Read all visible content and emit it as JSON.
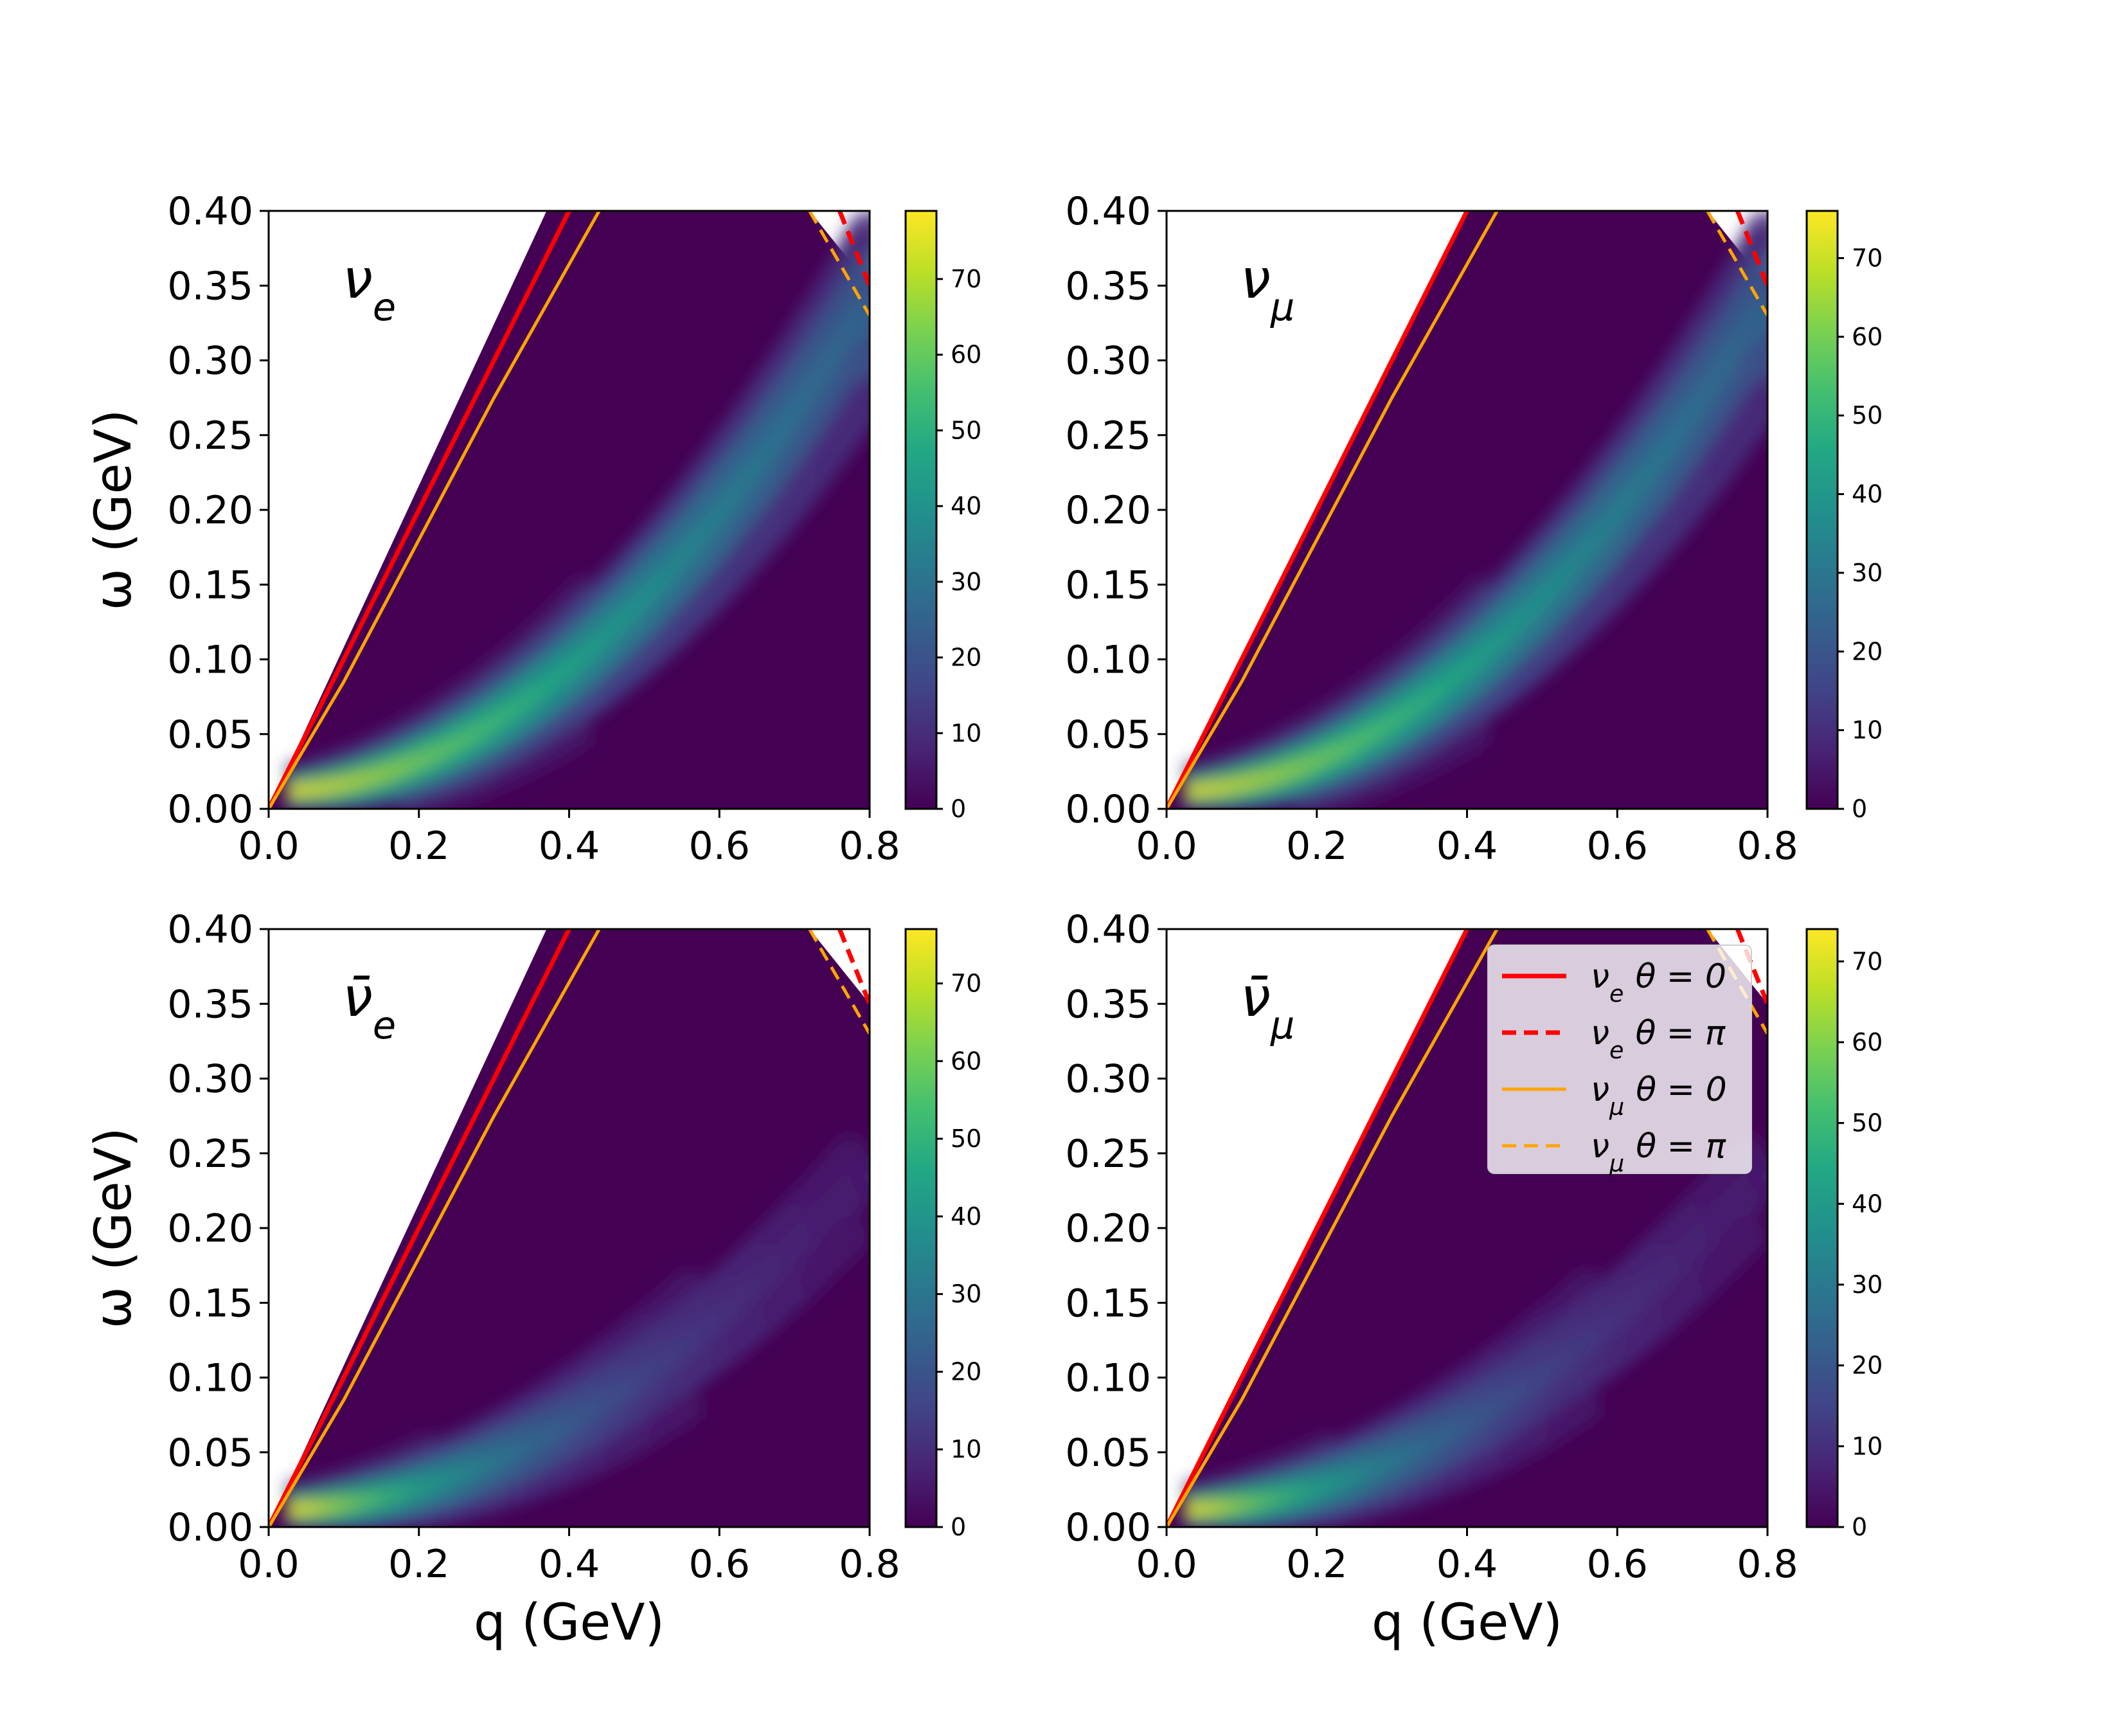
{
  "chart_data": [
    {
      "type": "heatmap",
      "panel": "top-left",
      "label_base": "ν",
      "label_sub": "e",
      "label_bar": false,
      "xlim": [
        0.0,
        0.8
      ],
      "ylim": [
        0.0,
        0.4
      ],
      "xticks": [
        "0.0",
        "0.2",
        "0.4",
        "0.6",
        "0.8"
      ],
      "yticks": [
        "0.00",
        "0.05",
        "0.10",
        "0.15",
        "0.20",
        "0.25",
        "0.30",
        "0.35",
        "0.40"
      ],
      "ylabel": "ω (GeV)",
      "xlabel": "",
      "colorbar": {
        "min": 0,
        "max": 79,
        "ticks": [
          "0",
          "10",
          "20",
          "30",
          "40",
          "50",
          "60",
          "70"
        ]
      },
      "region": {
        "lower_edge_slope": 1.0,
        "lower_edge_offset": 0.0,
        "upper_right_x_at_top": 0.72,
        "upper_right_x_at_035": 0.795
      },
      "peak_ridge": "ω ≈ 0.5 q²",
      "peak_value": 79,
      "has_legend": false
    },
    {
      "type": "heatmap",
      "panel": "top-right",
      "label_base": "ν",
      "label_sub": "μ",
      "label_bar": false,
      "xlim": [
        0.0,
        0.8
      ],
      "ylim": [
        0.0,
        0.4
      ],
      "xticks": [
        "0.0",
        "0.2",
        "0.4",
        "0.6",
        "0.8"
      ],
      "yticks": [
        "0.00",
        "0.05",
        "0.10",
        "0.15",
        "0.20",
        "0.25",
        "0.30",
        "0.35",
        "0.40"
      ],
      "ylabel": "",
      "xlabel": "",
      "colorbar": {
        "min": 0,
        "max": 76,
        "ticks": [
          "0",
          "10",
          "20",
          "30",
          "40",
          "50",
          "60",
          "70"
        ]
      },
      "region": {
        "lower_edge_slope": 1.0,
        "lower_edge_offset": 0.04,
        "upper_right_x_at_top": 0.72,
        "upper_right_x_at_035": 0.78
      },
      "peak_ridge": "ω ≈ 0.5 q²",
      "peak_value": 76,
      "has_legend": false
    },
    {
      "type": "heatmap",
      "panel": "bottom-left",
      "label_base": "ν",
      "label_sub": "e",
      "label_bar": true,
      "xlim": [
        0.0,
        0.8
      ],
      "ylim": [
        0.0,
        0.4
      ],
      "xticks": [
        "0.0",
        "0.2",
        "0.4",
        "0.6",
        "0.8"
      ],
      "yticks": [
        "0.00",
        "0.05",
        "0.10",
        "0.15",
        "0.20",
        "0.25",
        "0.30",
        "0.35",
        "0.40"
      ],
      "ylabel": "ω (GeV)",
      "xlabel": "q (GeV)",
      "colorbar": {
        "min": 0,
        "max": 77,
        "ticks": [
          "0",
          "10",
          "20",
          "30",
          "40",
          "50",
          "60",
          "70"
        ]
      },
      "region": {
        "lower_edge_slope": 1.0,
        "lower_edge_offset": 0.0,
        "upper_right_x_at_top": 0.72,
        "upper_right_x_at_035": 0.795
      },
      "peak_ridge": "ω ≈ 0.35 q²",
      "peak_value": 77,
      "has_legend": false
    },
    {
      "type": "heatmap",
      "panel": "bottom-right",
      "label_base": "ν",
      "label_sub": "μ",
      "label_bar": true,
      "xlim": [
        0.0,
        0.8
      ],
      "ylim": [
        0.0,
        0.4
      ],
      "xticks": [
        "0.0",
        "0.2",
        "0.4",
        "0.6",
        "0.8"
      ],
      "yticks": [
        "0.00",
        "0.05",
        "0.10",
        "0.15",
        "0.20",
        "0.25",
        "0.30",
        "0.35",
        "0.40"
      ],
      "ylabel": "",
      "xlabel": "q (GeV)",
      "colorbar": {
        "min": 0,
        "max": 74,
        "ticks": [
          "0",
          "10",
          "20",
          "30",
          "40",
          "50",
          "60",
          "70"
        ]
      },
      "region": {
        "lower_edge_slope": 1.0,
        "lower_edge_offset": 0.04,
        "upper_right_x_at_top": 0.72,
        "upper_right_x_at_035": 0.78
      },
      "peak_ridge": "ω ≈ 0.35 q²",
      "peak_value": 74,
      "has_legend": true
    }
  ],
  "lines": [
    {
      "name": "ve_theta0",
      "label_base": "ν",
      "label_sub": "e",
      "label_theta": "θ = 0",
      "color": "#ff0000",
      "dash": false,
      "points": [
        [
          0.0,
          0.0
        ],
        [
          0.1,
          0.1
        ],
        [
          0.2,
          0.2
        ],
        [
          0.3,
          0.3
        ],
        [
          0.4,
          0.4
        ]
      ]
    },
    {
      "name": "ve_thetapi",
      "label_base": "ν",
      "label_sub": "e",
      "label_theta": "θ = π",
      "color": "#ff0000",
      "dash": true,
      "points": [
        [
          0.76,
          0.4
        ],
        [
          0.8,
          0.35
        ]
      ]
    },
    {
      "name": "vmu_theta0",
      "label_base": "ν",
      "label_sub": "μ",
      "label_theta": "θ = 0",
      "color": "#ffa500",
      "dash": false,
      "points": [
        [
          0.0,
          0.0
        ],
        [
          0.1,
          0.085
        ],
        [
          0.2,
          0.18
        ],
        [
          0.3,
          0.275
        ],
        [
          0.44,
          0.4
        ]
      ]
    },
    {
      "name": "vmu_thetapi",
      "label_base": "ν",
      "label_sub": "μ",
      "label_theta": "θ = π",
      "color": "#ffa500",
      "dash": true,
      "points": [
        [
          0.72,
          0.4
        ],
        [
          0.8,
          0.33
        ]
      ]
    }
  ],
  "colors": {
    "viridis_low": "#440154",
    "viridis_high": "#fde725",
    "white": "#ffffff"
  }
}
